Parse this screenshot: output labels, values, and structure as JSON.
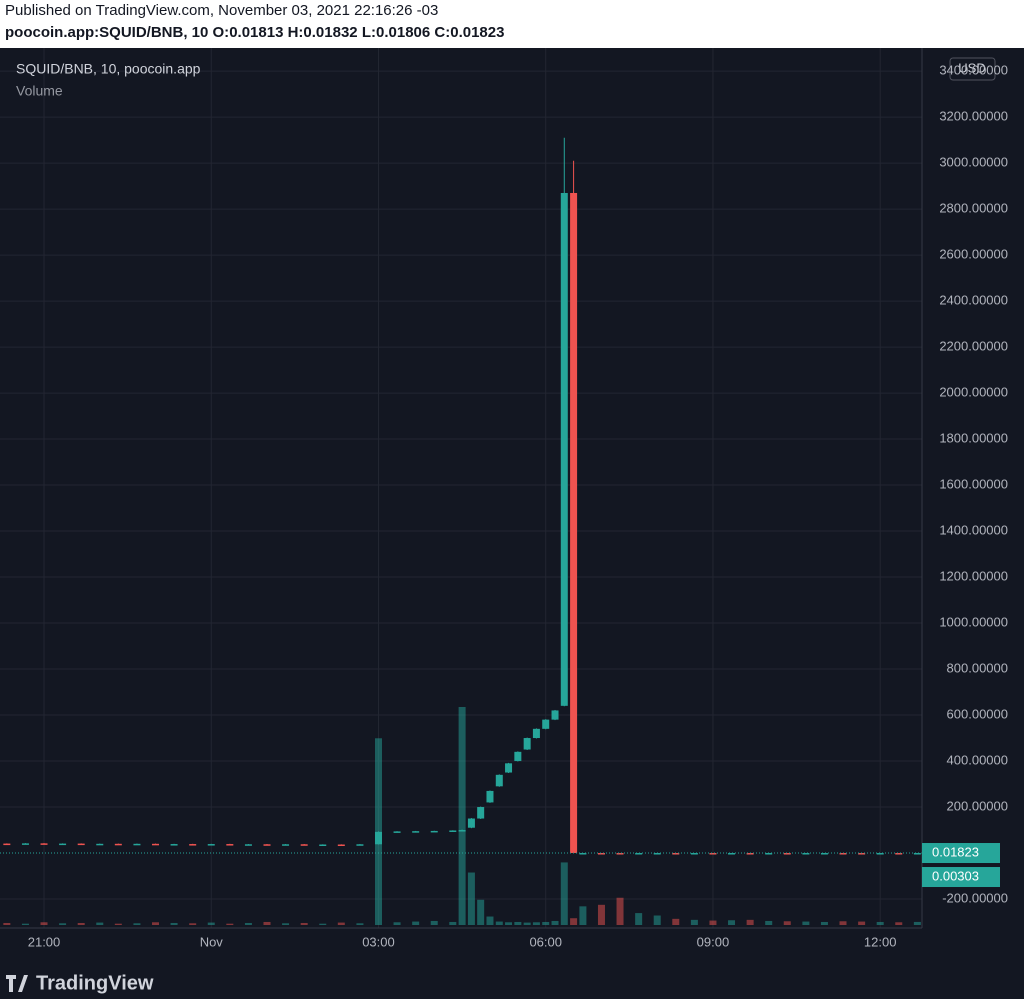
{
  "header": {
    "published": "Published on TradingView.com, November 03, 2021 22:16:26 -03",
    "symbol": "poocoin.app:SQUID/BNB, 10",
    "ohlc_labels": [
      "O:",
      "H:",
      "L:",
      "C:"
    ]
  },
  "chart_data": {
    "type": "candlestick",
    "currency": "USD",
    "up_color": "#26a69a",
    "down_color": "#ef5350",
    "grid": true,
    "xlim": [
      -3.7,
      12.75
    ],
    "ylim": [
      -313,
      3470
    ],
    "xticks": [
      {
        "value": -3,
        "label": "21:00"
      },
      {
        "value": 0,
        "label": "Nov"
      },
      {
        "value": 3,
        "label": "03:00"
      },
      {
        "value": 6,
        "label": "06:00"
      },
      {
        "value": 9,
        "label": "09:00"
      },
      {
        "value": 12,
        "label": "12:00"
      }
    ],
    "yticks": [
      {
        "value": 3400,
        "label": "3400.00000"
      },
      {
        "value": 3200,
        "label": "3200.00000"
      },
      {
        "value": 3000,
        "label": "3000.00000"
      },
      {
        "value": 2800,
        "label": "2800.00000"
      },
      {
        "value": 2600,
        "label": "2600.00000"
      },
      {
        "value": 2400,
        "label": "2400.00000"
      },
      {
        "value": 2200,
        "label": "2200.00000"
      },
      {
        "value": 2000,
        "label": "2000.00000"
      },
      {
        "value": 1800,
        "label": "1800.00000"
      },
      {
        "value": 1600,
        "label": "1600.00000"
      },
      {
        "value": 1400,
        "label": "1400.00000"
      },
      {
        "value": 1200,
        "label": "1200.00000"
      },
      {
        "value": 1000,
        "label": "1000.00000"
      },
      {
        "value": 800,
        "label": "800.00000"
      },
      {
        "value": 600,
        "label": "600.00000"
      },
      {
        "value": 400,
        "label": "400.00000"
      },
      {
        "value": 200,
        "label": "200.00000"
      },
      {
        "value": -200,
        "label": "-200.00000"
      }
    ],
    "series": [
      {
        "name": "SQUID/BNB, 10, poocoin.app",
        "x": [
          -3.667,
          -3.333,
          -3,
          -2.667,
          -2.333,
          -2,
          -1.667,
          -1.333,
          -1,
          -0.667,
          -0.333,
          0,
          0.333,
          0.667,
          1,
          1.333,
          1.667,
          2,
          2.333,
          2.667,
          3,
          3.333,
          3.667,
          4,
          4.333,
          4.5,
          4.667,
          4.833,
          5,
          5.167,
          5.333,
          5.5,
          5.667,
          5.833,
          6,
          6.167,
          6.333,
          6.5,
          6.667,
          7,
          7.333,
          7.667,
          8,
          8.333,
          8.667,
          9,
          9.333,
          9.667,
          10,
          10.333,
          10.667,
          11,
          11.333,
          11.667,
          12,
          12.333,
          12.667
        ],
        "open": [
          41,
          39,
          42,
          40,
          41,
          38,
          40,
          38,
          40,
          37,
          39,
          37,
          39,
          36,
          38,
          36,
          38,
          36,
          37,
          35,
          38,
          92,
          94,
          95,
          96,
          98,
          110,
          150,
          220,
          290,
          350,
          400,
          450,
          500,
          540,
          580,
          640,
          2870,
          0.0182,
          0.0184,
          0.0182,
          0.018,
          0.0183,
          0.0184,
          0.0182,
          0.0183,
          0.0181,
          0.0182,
          0.0181,
          0.0182,
          0.0181,
          0.0182,
          0.0183,
          0.0182,
          0.0181,
          0.0182,
          0.01813
        ],
        "high": [
          42,
          43,
          43,
          42,
          42,
          41,
          41,
          41,
          41,
          40,
          40,
          40,
          40,
          39,
          39,
          39,
          39,
          38,
          38,
          39,
          94,
          95,
          96,
          97,
          99,
          102,
          152,
          202,
          272,
          342,
          392,
          442,
          502,
          542,
          582,
          622,
          3110,
          3010,
          0.0185,
          0.0186,
          0.0184,
          0.0184,
          0.0185,
          0.0185,
          0.0184,
          0.0184,
          0.0183,
          0.0184,
          0.0183,
          0.0183,
          0.0183,
          0.0184,
          0.0184,
          0.0183,
          0.0183,
          0.0183,
          0.01832
        ],
        "low": [
          38,
          38,
          39,
          39,
          37,
          37,
          37,
          37,
          36,
          36,
          36,
          36,
          35,
          35,
          35,
          35,
          35,
          35,
          34,
          34,
          37,
          91,
          93,
          94,
          95,
          97,
          108,
          148,
          218,
          288,
          348,
          398,
          448,
          498,
          538,
          578,
          638,
          0.01,
          0.018,
          0.0181,
          0.0179,
          0.0179,
          0.0181,
          0.0181,
          0.018,
          0.018,
          0.018,
          0.018,
          0.018,
          0.018,
          0.018,
          0.0181,
          0.0181,
          0.018,
          0.018,
          0.018,
          0.01806
        ],
        "close": [
          39,
          42,
          40,
          41,
          38,
          40,
          38,
          40,
          37,
          39,
          37,
          39,
          36,
          38,
          36,
          38,
          36,
          37,
          35,
          38,
          92,
          94,
          95,
          96,
          98,
          100,
          150,
          200,
          270,
          340,
          390,
          440,
          500,
          540,
          580,
          620,
          2870,
          0.02,
          0.0184,
          0.0182,
          0.018,
          0.0183,
          0.0184,
          0.0182,
          0.0183,
          0.0181,
          0.0182,
          0.0181,
          0.0182,
          0.0181,
          0.0182,
          0.0183,
          0.0182,
          0.0181,
          0.0182,
          0.0181,
          0.01823
        ]
      },
      {
        "name": "Volume",
        "values": [
          0.002,
          0.0013,
          0.0027,
          0.0017,
          0.002,
          0.0024,
          0.0013,
          0.0017,
          0.0027,
          0.002,
          0.0017,
          0.0024,
          0.0013,
          0.002,
          0.003,
          0.0017,
          0.002,
          0.0013,
          0.0024,
          0.0017,
          0.185,
          0.0027,
          0.0034,
          0.004,
          0.003,
          0.216,
          0.052,
          0.025,
          0.0084,
          0.0034,
          0.0027,
          0.003,
          0.0024,
          0.0027,
          0.003,
          0.004,
          0.062,
          0.0067,
          0.0185,
          0.02,
          0.027,
          0.0118,
          0.0094,
          0.0061,
          0.0051,
          0.0044,
          0.0047,
          0.0051,
          0.004,
          0.0037,
          0.0034,
          0.003,
          0.0037,
          0.0034,
          0.003,
          0.0027,
          0.00303
        ]
      }
    ]
  },
  "footer": {
    "logo": "TradingView"
  }
}
